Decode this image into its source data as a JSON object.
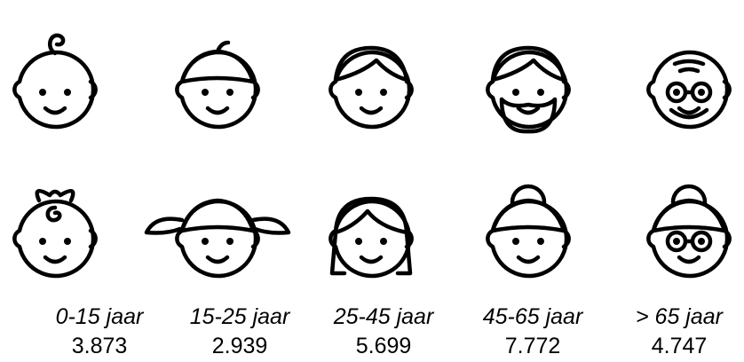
{
  "groups": [
    {
      "label": "0-15 jaar",
      "count": "3.873"
    },
    {
      "label": "15-25 jaar",
      "count": "2.939"
    },
    {
      "label": "25-45 jaar",
      "count": "5.699"
    },
    {
      "label": "45-65 jaar",
      "count": "7.772"
    },
    {
      "label": "> 65 jaar",
      "count": "4.747"
    }
  ]
}
